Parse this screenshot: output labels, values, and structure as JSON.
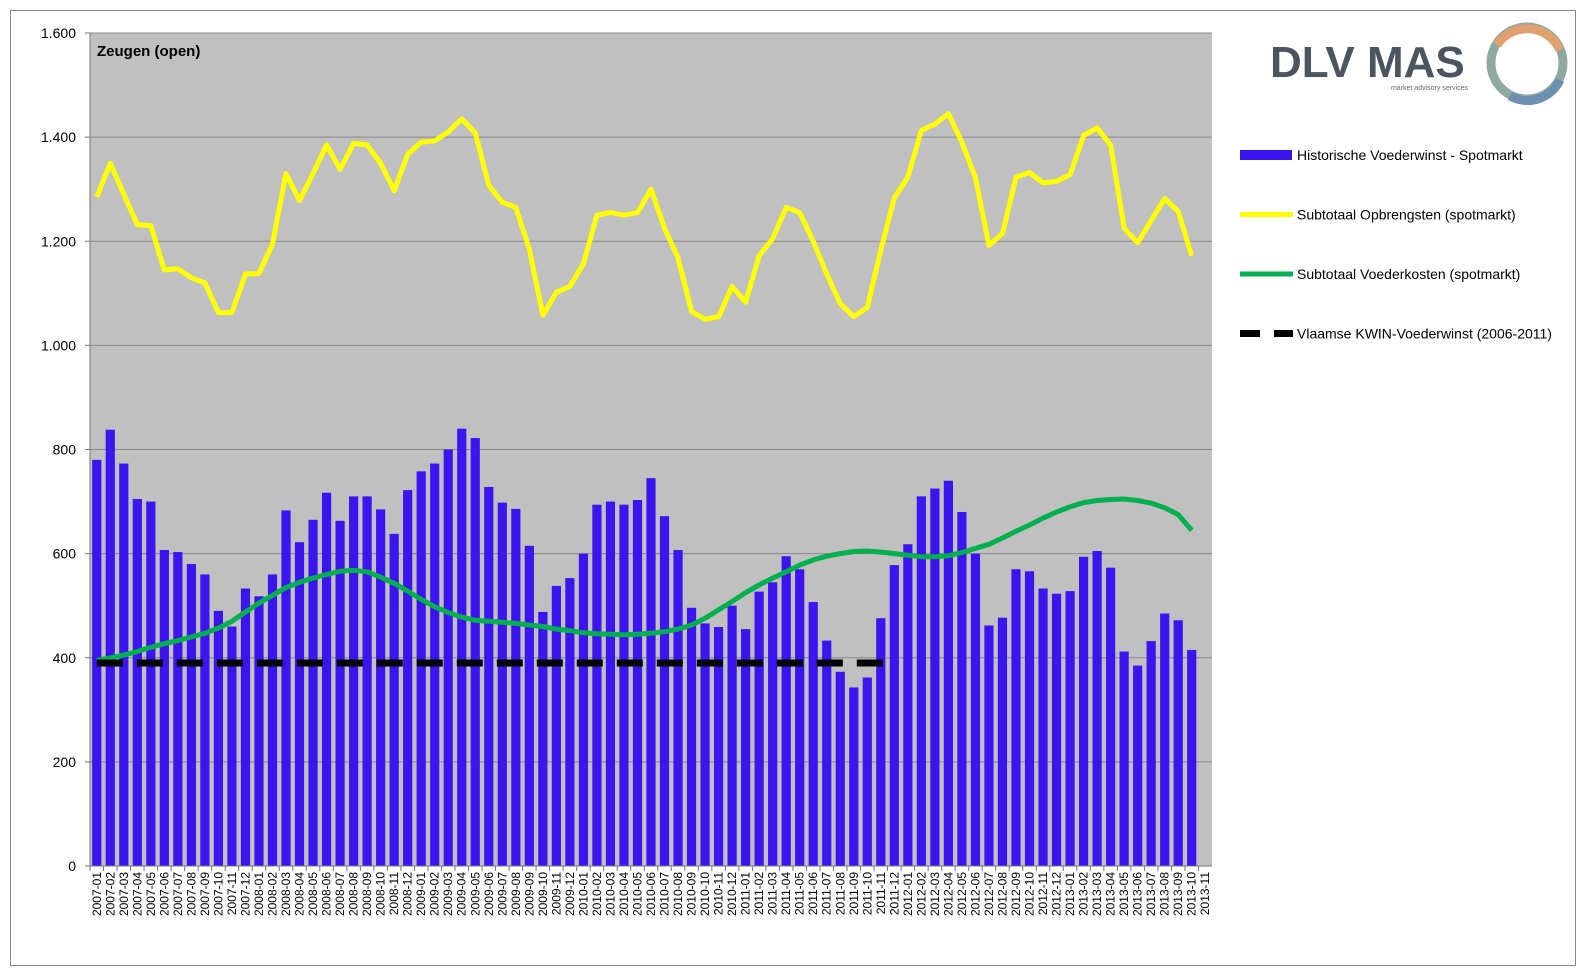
{
  "chart_data": {
    "type": "combo",
    "title": "Zeugen (open)",
    "logo": {
      "name": "DLV MAS",
      "tagline": "market advisory services"
    },
    "categories": [
      "2007-01",
      "2007-02",
      "2007-03",
      "2007-04",
      "2007-05",
      "2007-06",
      "2007-07",
      "2007-08",
      "2007-09",
      "2007-10",
      "2007-11",
      "2007-12",
      "2008-01",
      "2008-02",
      "2008-03",
      "2008-04",
      "2008-05",
      "2008-06",
      "2008-07",
      "2008-08",
      "2008-09",
      "2008-10",
      "2008-11",
      "2008-12",
      "2009-01",
      "2009-02",
      "2009-03",
      "2009-04",
      "2009-05",
      "2009-06",
      "2009-07",
      "2009-08",
      "2009-09",
      "2009-10",
      "2009-11",
      "2009-12",
      "2010-01",
      "2010-02",
      "2010-03",
      "2010-04",
      "2010-05",
      "2010-06",
      "2010-07",
      "2010-08",
      "2010-09",
      "2010-10",
      "2010-11",
      "2010-12",
      "2011-01",
      "2011-02",
      "2011-03",
      "2011-04",
      "2011-05",
      "2011-06",
      "2011-07",
      "2011-08",
      "2011-09",
      "2011-10",
      "2011-11",
      "2011-12",
      "2012-01",
      "2012-02",
      "2012-03",
      "2012-04",
      "2012-05",
      "2012-06",
      "2012-07",
      "2012-08",
      "2012-09",
      "2012-10",
      "2012-11",
      "2012-12",
      "2013-01",
      "2013-02",
      "2013-03",
      "2013-04",
      "2013-05",
      "2013-06",
      "2013-07",
      "2013-08",
      "2013-09",
      "2013-10",
      "2013-11"
    ],
    "series": [
      {
        "name": "Historische Voederwinst - Spotmarkt",
        "type": "bar",
        "color": "#3c14f0",
        "values": [
          780,
          838,
          773,
          705,
          700,
          607,
          603,
          580,
          560,
          490,
          460,
          533,
          518,
          560,
          683,
          622,
          665,
          717,
          663,
          710,
          710,
          685,
          638,
          722,
          758,
          773,
          800,
          840,
          822,
          728,
          698,
          686,
          615,
          488,
          538,
          553,
          600,
          694,
          700,
          694,
          703,
          745,
          672,
          607,
          496,
          466,
          459,
          500,
          455,
          527,
          545,
          595,
          570,
          507,
          433,
          373,
          343,
          362,
          476,
          578,
          618,
          710,
          725,
          740,
          680,
          600,
          462,
          477,
          570,
          566,
          533,
          523,
          528,
          594,
          605,
          573,
          412,
          385,
          432,
          485,
          472,
          415,
          null
        ]
      },
      {
        "name": "Subtotaal Opbrengsten (spotmarkt)",
        "type": "line",
        "color": "#ffff00",
        "values": [
          1285,
          1350,
          1290,
          1232,
          1230,
          1145,
          1147,
          1130,
          1120,
          1063,
          1063,
          1137,
          1138,
          1195,
          1330,
          1278,
          1330,
          1385,
          1338,
          1388,
          1385,
          1350,
          1297,
          1367,
          1390,
          1393,
          1410,
          1435,
          1408,
          1307,
          1275,
          1265,
          1185,
          1058,
          1102,
          1113,
          1157,
          1250,
          1255,
          1250,
          1255,
          1300,
          1225,
          1168,
          1065,
          1050,
          1055,
          1113,
          1083,
          1172,
          1205,
          1265,
          1255,
          1200,
          1137,
          1080,
          1055,
          1073,
          1183,
          1283,
          1323,
          1413,
          1425,
          1445,
          1390,
          1322,
          1192,
          1215,
          1323,
          1332,
          1312,
          1315,
          1328,
          1403,
          1418,
          1385,
          1225,
          1197,
          1240,
          1282,
          1257,
          1172,
          null
        ]
      },
      {
        "name": "Subtotaal Voederkosten (spotmarkt)",
        "type": "line",
        "color": "#00b050",
        "values": [
          395,
          400,
          405,
          412,
          420,
          427,
          433,
          440,
          447,
          457,
          470,
          488,
          505,
          520,
          535,
          545,
          553,
          560,
          566,
          568,
          565,
          555,
          543,
          528,
          512,
          498,
          487,
          478,
          472,
          470,
          468,
          466,
          463,
          460,
          455,
          452,
          448,
          446,
          445,
          444,
          445,
          447,
          450,
          455,
          463,
          476,
          492,
          508,
          525,
          540,
          553,
          565,
          578,
          588,
          595,
          600,
          604,
          605,
          603,
          600,
          597,
          594,
          594,
          596,
          602,
          610,
          618,
          630,
          643,
          655,
          668,
          680,
          690,
          698,
          702,
          704,
          705,
          702,
          697,
          688,
          675,
          645,
          null
        ]
      },
      {
        "name": "Vlaamse KWIN-Voederwinst (2006-2011)",
        "type": "line",
        "dashed": true,
        "color": "#000000",
        "values": [
          390,
          390,
          390,
          390,
          390,
          390,
          390,
          390,
          390,
          390,
          390,
          390,
          390,
          390,
          390,
          390,
          390,
          390,
          390,
          390,
          390,
          390,
          390,
          390,
          390,
          390,
          390,
          390,
          390,
          390,
          390,
          390,
          390,
          390,
          390,
          390,
          390,
          390,
          390,
          390,
          390,
          390,
          390,
          390,
          390,
          390,
          390,
          390,
          390,
          390,
          390,
          390,
          390,
          390,
          390,
          390,
          390,
          390,
          390,
          390,
          null,
          null,
          null,
          null,
          null,
          null,
          null,
          null,
          null,
          null,
          null,
          null,
          null,
          null,
          null,
          null,
          null,
          null,
          null,
          null,
          null,
          null,
          null
        ]
      }
    ],
    "ylim": [
      0,
      1600
    ],
    "yticks": [
      0,
      200,
      400,
      600,
      800,
      {
        "value": 1000,
        "label": "1.000"
      },
      {
        "value": 1200,
        "label": "1.200"
      },
      {
        "value": 1400,
        "label": "1.400"
      },
      {
        "value": 1600,
        "label": "1.600"
      }
    ],
    "grid": true,
    "legend": "right"
  }
}
